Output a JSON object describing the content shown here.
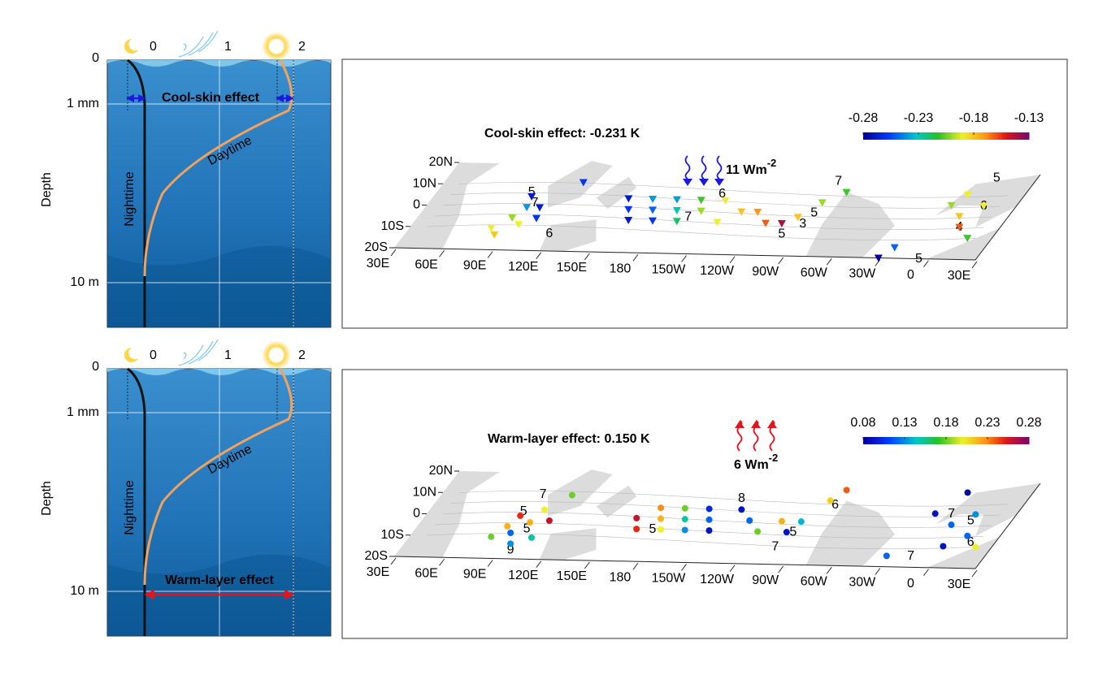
{
  "panels": [
    {
      "schematic": {
        "xticks": [
          "0",
          "1",
          "2"
        ],
        "yticks": [
          "0",
          "1 mm",
          "10 m"
        ],
        "ylabel": "Depth",
        "night_label": "Nighttime",
        "day_label": "Daytime",
        "effect_label": "Cool-skin effect"
      },
      "map": {
        "title": "Cool-skin effect: -0.231  K",
        "flux": "11 Wm",
        "flux_exponent": "-2",
        "lon_labels": [
          "30E",
          "60E",
          "90E",
          "120E",
          "150E",
          "180",
          "150W",
          "120W",
          "90W",
          "60W",
          "30W",
          "0",
          "30E"
        ],
        "lat_labels": [
          "20N",
          "10N",
          "0",
          "10S",
          "20S"
        ],
        "colorbar_lim": [
          -0.28,
          -0.13
        ],
        "colorbar_ticks": [
          -0.28,
          -0.23,
          -0.18,
          -0.13
        ],
        "marker": "triangle",
        "contour_labels": [
          {
            "lon": 88,
            "lat": 7,
            "label": "5"
          },
          {
            "lon": 95,
            "lat": 2,
            "label": "7"
          },
          {
            "lon": 118,
            "lat": -12,
            "label": "6"
          },
          {
            "lon": 195,
            "lat": -3,
            "label": "7"
          },
          {
            "lon": 205,
            "lat": 8,
            "label": "6"
          },
          {
            "lon": 270,
            "lat": 0,
            "label": "5"
          },
          {
            "lon": 268,
            "lat": -5,
            "label": "3"
          },
          {
            "lon": 260,
            "lat": -10,
            "label": "5"
          },
          {
            "lon": 270,
            "lat": 15,
            "label": "7"
          },
          {
            "lon": 365,
            "lat": 18,
            "label": "5"
          },
          {
            "lon": 370,
            "lat": 5,
            "label": "6"
          },
          {
            "lon": 365,
            "lat": -5,
            "label": "4"
          },
          {
            "lon": 355,
            "lat": -20,
            "label": "5"
          }
        ],
        "points": [
          {
            "lon": 80,
            "lat": -10,
            "value": -0.19
          },
          {
            "lon": 85,
            "lat": -13,
            "value": -0.18
          },
          {
            "lon": 88,
            "lat": -5,
            "value": -0.2
          },
          {
            "lon": 90,
            "lat": 5,
            "value": -0.27
          },
          {
            "lon": 92,
            "lat": 0,
            "value": -0.24
          },
          {
            "lon": 95,
            "lat": -8,
            "value": -0.19
          },
          {
            "lon": 100,
            "lat": 0,
            "value": -0.27
          },
          {
            "lon": 103,
            "lat": -5,
            "value": -0.26
          },
          {
            "lon": 115,
            "lat": 12,
            "value": -0.26
          },
          {
            "lon": 150,
            "lat": 5,
            "value": -0.27
          },
          {
            "lon": 155,
            "lat": 0,
            "value": -0.26
          },
          {
            "lon": 160,
            "lat": -5,
            "value": -0.27
          },
          {
            "lon": 165,
            "lat": 5,
            "value": -0.24
          },
          {
            "lon": 170,
            "lat": 0,
            "value": -0.25
          },
          {
            "lon": 175,
            "lat": -5,
            "value": -0.26
          },
          {
            "lon": 180,
            "lat": 5,
            "value": -0.24
          },
          {
            "lon": 185,
            "lat": 0,
            "value": -0.23
          },
          {
            "lon": 190,
            "lat": -5,
            "value": -0.22
          },
          {
            "lon": 195,
            "lat": 5,
            "value": -0.21
          },
          {
            "lon": 200,
            "lat": 0,
            "value": -0.2
          },
          {
            "lon": 210,
            "lat": 5,
            "value": -0.19
          },
          {
            "lon": 215,
            "lat": -5,
            "value": -0.19
          },
          {
            "lon": 225,
            "lat": 0,
            "value": -0.18
          },
          {
            "lon": 235,
            "lat": 0,
            "value": -0.17
          },
          {
            "lon": 245,
            "lat": -5,
            "value": -0.16
          },
          {
            "lon": 255,
            "lat": -5,
            "value": -0.14
          },
          {
            "lon": 262,
            "lat": -2,
            "value": -0.18
          },
          {
            "lon": 270,
            "lat": 5,
            "value": -0.2
          },
          {
            "lon": 280,
            "lat": 10,
            "value": -0.21
          },
          {
            "lon": 330,
            "lat": -20,
            "value": -0.28
          },
          {
            "lon": 335,
            "lat": -15,
            "value": -0.25
          },
          {
            "lon": 350,
            "lat": 5,
            "value": -0.2
          },
          {
            "lon": 355,
            "lat": 10,
            "value": -0.19
          },
          {
            "lon": 360,
            "lat": 0,
            "value": -0.18
          },
          {
            "lon": 365,
            "lat": -5,
            "value": -0.16
          },
          {
            "lon": 370,
            "lat": 5,
            "value": -0.19
          },
          {
            "lon": 375,
            "lat": -10,
            "value": -0.21
          }
        ]
      }
    },
    {
      "schematic": {
        "xticks": [
          "0",
          "1",
          "2"
        ],
        "yticks": [
          "0",
          "1 mm",
          "10 m"
        ],
        "ylabel": "Depth",
        "night_label": "Nighttime",
        "day_label": "Daytime",
        "effect_label": "Warm-layer effect"
      },
      "map": {
        "title": "Warm-layer effect: 0.150  K",
        "flux": "6 Wm",
        "flux_exponent": "-2",
        "lon_labels": [
          "30E",
          "60E",
          "90E",
          "120E",
          "150E",
          "180",
          "150W",
          "120W",
          "90W",
          "60W",
          "30W",
          "0",
          "30E"
        ],
        "lat_labels": [
          "20N",
          "10N",
          "0",
          "10S",
          "20S"
        ],
        "colorbar_lim": [
          0.08,
          0.28
        ],
        "colorbar_ticks": [
          0.08,
          0.13,
          0.18,
          0.23,
          0.28
        ],
        "marker": "circle",
        "contour_labels": [
          {
            "lon": 92,
            "lat": 10,
            "label": "7"
          },
          {
            "lon": 88,
            "lat": 2,
            "label": "5"
          },
          {
            "lon": 98,
            "lat": -6,
            "label": "5"
          },
          {
            "lon": 98,
            "lat": -16,
            "label": "9"
          },
          {
            "lon": 175,
            "lat": -5,
            "label": "5"
          },
          {
            "lon": 215,
            "lat": 10,
            "label": "8"
          },
          {
            "lon": 275,
            "lat": 8,
            "label": "6"
          },
          {
            "lon": 262,
            "lat": -5,
            "label": "5"
          },
          {
            "lon": 258,
            "lat": -12,
            "label": "7"
          },
          {
            "lon": 350,
            "lat": 5,
            "label": "7"
          },
          {
            "lon": 365,
            "lat": 2,
            "label": "5"
          },
          {
            "lon": 375,
            "lat": -8,
            "label": "6"
          },
          {
            "lon": 345,
            "lat": -15,
            "label": "7"
          }
        ],
        "points": [
          {
            "lon": 80,
            "lat": -10,
            "value": 0.18
          },
          {
            "lon": 85,
            "lat": -5,
            "value": 0.22
          },
          {
            "lon": 88,
            "lat": 0,
            "value": 0.25
          },
          {
            "lon": 90,
            "lat": -8,
            "value": 0.12
          },
          {
            "lon": 95,
            "lat": -13,
            "value": 0.13
          },
          {
            "lon": 97,
            "lat": -3,
            "value": 0.22
          },
          {
            "lon": 100,
            "lat": 3,
            "value": 0.2
          },
          {
            "lon": 105,
            "lat": -10,
            "value": 0.15
          },
          {
            "lon": 108,
            "lat": -2,
            "value": 0.26
          },
          {
            "lon": 110,
            "lat": 10,
            "value": 0.18
          },
          {
            "lon": 160,
            "lat": 0,
            "value": 0.26
          },
          {
            "lon": 165,
            "lat": -5,
            "value": 0.25
          },
          {
            "lon": 170,
            "lat": 5,
            "value": 0.23
          },
          {
            "lon": 175,
            "lat": 0,
            "value": 0.22
          },
          {
            "lon": 180,
            "lat": -5,
            "value": 0.2
          },
          {
            "lon": 185,
            "lat": 5,
            "value": 0.18
          },
          {
            "lon": 190,
            "lat": 0,
            "value": 0.15
          },
          {
            "lon": 195,
            "lat": -5,
            "value": 0.13
          },
          {
            "lon": 200,
            "lat": 5,
            "value": 0.1
          },
          {
            "lon": 205,
            "lat": 0,
            "value": 0.12
          },
          {
            "lon": 210,
            "lat": -5,
            "value": 0.09
          },
          {
            "lon": 220,
            "lat": 5,
            "value": 0.09
          },
          {
            "lon": 230,
            "lat": 0,
            "value": 0.12
          },
          {
            "lon": 240,
            "lat": -5,
            "value": 0.18
          },
          {
            "lon": 250,
            "lat": 0,
            "value": 0.22
          },
          {
            "lon": 258,
            "lat": -5,
            "value": 0.09
          },
          {
            "lon": 262,
            "lat": 0,
            "value": 0.14
          },
          {
            "lon": 270,
            "lat": 10,
            "value": 0.21
          },
          {
            "lon": 275,
            "lat": 15,
            "value": 0.24
          },
          {
            "lon": 330,
            "lat": -15,
            "value": 0.12
          },
          {
            "lon": 340,
            "lat": 5,
            "value": 0.09
          },
          {
            "lon": 350,
            "lat": 15,
            "value": 0.08
          },
          {
            "lon": 355,
            "lat": 0,
            "value": 0.12
          },
          {
            "lon": 360,
            "lat": -10,
            "value": 0.09
          },
          {
            "lon": 365,
            "lat": 5,
            "value": 0.13
          },
          {
            "lon": 370,
            "lat": -5,
            "value": 0.12
          },
          {
            "lon": 380,
            "lat": -10,
            "value": 0.2
          }
        ]
      }
    }
  ]
}
